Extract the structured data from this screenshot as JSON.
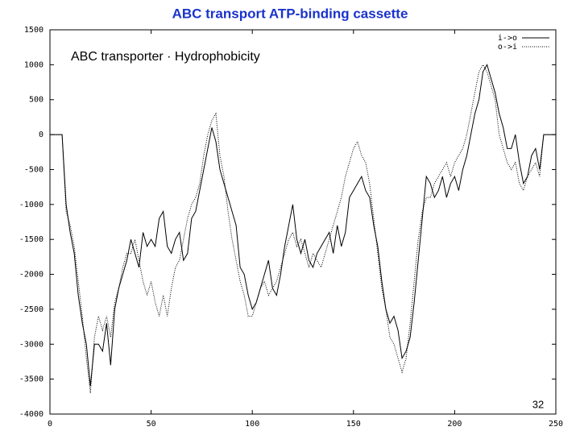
{
  "chart_data": {
    "type": "line",
    "title": "ABC transport ATP-binding cassette",
    "annotations": [
      "ABC transporter · Hydrophobicity",
      "32"
    ],
    "x": [
      0,
      2,
      4,
      6,
      8,
      10,
      12,
      14,
      16,
      18,
      20,
      22,
      24,
      26,
      28,
      30,
      32,
      34,
      36,
      38,
      40,
      42,
      44,
      46,
      48,
      50,
      52,
      54,
      56,
      58,
      60,
      62,
      64,
      66,
      68,
      70,
      72,
      74,
      76,
      78,
      80,
      82,
      84,
      86,
      88,
      90,
      92,
      94,
      96,
      98,
      100,
      102,
      104,
      106,
      108,
      110,
      112,
      114,
      116,
      118,
      120,
      122,
      124,
      126,
      128,
      130,
      132,
      134,
      136,
      138,
      140,
      142,
      144,
      146,
      148,
      150,
      152,
      154,
      156,
      158,
      160,
      162,
      164,
      166,
      168,
      170,
      172,
      174,
      176,
      178,
      180,
      182,
      184,
      186,
      188,
      190,
      192,
      194,
      196,
      198,
      200,
      202,
      204,
      206,
      208,
      210,
      212,
      214,
      216,
      218,
      220,
      222,
      224,
      226,
      228,
      230,
      232,
      234,
      236,
      238,
      240,
      242,
      244,
      246,
      248,
      250
    ],
    "series": [
      {
        "name": "i->o",
        "color": "#000000",
        "dash": "solid",
        "values": [
          0,
          0,
          0,
          0,
          -1000,
          -1400,
          -1700,
          -2300,
          -2700,
          -3000,
          -3600,
          -3000,
          -3000,
          -3100,
          -2700,
          -3300,
          -2500,
          -2200,
          -2000,
          -1800,
          -1500,
          -1700,
          -1900,
          -1400,
          -1600,
          -1500,
          -1600,
          -1200,
          -1100,
          -1600,
          -1700,
          -1500,
          -1400,
          -1800,
          -1700,
          -1200,
          -1100,
          -800,
          -500,
          -200,
          100,
          -100,
          -500,
          -700,
          -900,
          -1100,
          -1300,
          -1900,
          -2000,
          -2300,
          -2500,
          -2400,
          -2200,
          -2000,
          -1800,
          -2200,
          -2300,
          -2000,
          -1600,
          -1300,
          -1000,
          -1500,
          -1700,
          -1500,
          -1800,
          -1900,
          -1700,
          -1600,
          -1500,
          -1400,
          -1700,
          -1300,
          -1600,
          -1400,
          -900,
          -800,
          -700,
          -600,
          -800,
          -900,
          -1300,
          -1600,
          -2100,
          -2500,
          -2700,
          -2600,
          -2800,
          -3200,
          -3100,
          -2900,
          -2400,
          -1800,
          -1200,
          -600,
          -700,
          -900,
          -800,
          -600,
          -900,
          -700,
          -600,
          -800,
          -500,
          -300,
          0,
          300,
          500,
          900,
          1000,
          800,
          600,
          300,
          100,
          -200,
          -200,
          0,
          -400,
          -700,
          -600,
          -300,
          -200,
          -500,
          0,
          0,
          0,
          0
        ]
      },
      {
        "name": "o->i",
        "color": "#000000",
        "dash": "dotted",
        "values": [
          0,
          0,
          0,
          0,
          -1100,
          -1300,
          -1600,
          -2100,
          -2600,
          -3200,
          -3700,
          -2900,
          -2600,
          -2800,
          -2600,
          -2900,
          -2400,
          -2200,
          -1900,
          -1700,
          -1700,
          -1500,
          -1800,
          -2100,
          -2300,
          -2100,
          -2400,
          -2600,
          -2300,
          -2600,
          -2200,
          -1900,
          -1800,
          -1500,
          -1200,
          -1000,
          -900,
          -700,
          -300,
          0,
          200,
          300,
          -300,
          -600,
          -1100,
          -1500,
          -1800,
          -2100,
          -2300,
          -2600,
          -2600,
          -2400,
          -2200,
          -2100,
          -2300,
          -2200,
          -2100,
          -1900,
          -1700,
          -1500,
          -1400,
          -1600,
          -1500,
          -1700,
          -1900,
          -1700,
          -1800,
          -1900,
          -1700,
          -1500,
          -1300,
          -1100,
          -900,
          -600,
          -400,
          -200,
          -100,
          -300,
          -400,
          -700,
          -1200,
          -1700,
          -2200,
          -2500,
          -2900,
          -3000,
          -3200,
          -3400,
          -3200,
          -2700,
          -2100,
          -1500,
          -1100,
          -900,
          -900,
          -700,
          -600,
          -500,
          -400,
          -600,
          -400,
          -300,
          -200,
          0,
          300,
          600,
          900,
          1000,
          900,
          700,
          500,
          0,
          -200,
          -400,
          -500,
          -400,
          -700,
          -800,
          -600,
          -500,
          -400,
          -600,
          0,
          0,
          0,
          0
        ]
      }
    ],
    "xlim": [
      0,
      250
    ],
    "xticks": [
      0,
      50,
      100,
      150,
      200,
      250
    ],
    "ylim": [
      -4000,
      1500
    ],
    "yticks": [
      1500,
      1000,
      500,
      0,
      -500,
      -1000,
      -1500,
      -2000,
      -2500,
      -3000,
      -3500,
      -4000
    ],
    "legend": "upper right"
  }
}
